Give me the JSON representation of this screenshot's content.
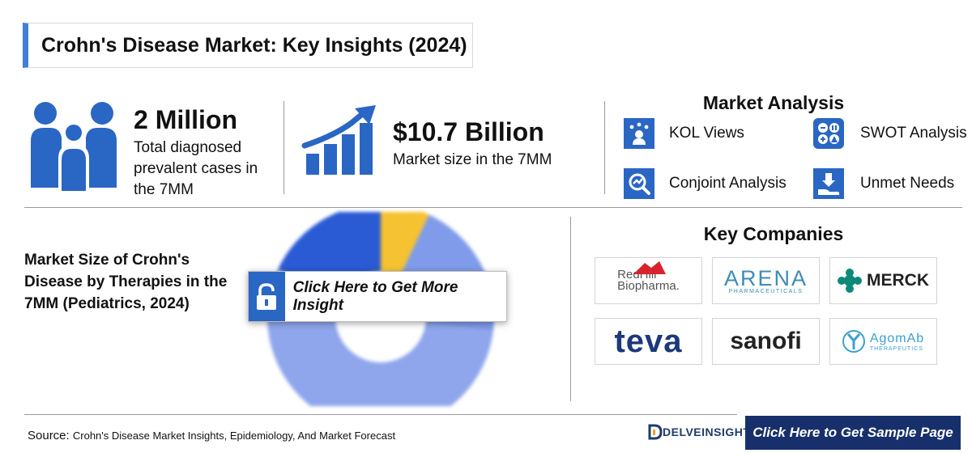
{
  "title": "Crohn's Disease Market: Key Insights (2024)",
  "stats": [
    {
      "value": "2 Million",
      "desc_lines": [
        "Total diagnosed",
        "prevalent cases in",
        "the 7MM"
      ],
      "icon": "family-icon"
    },
    {
      "value": "$10.7 Billion",
      "desc_lines": [
        "Market size in the 7MM"
      ],
      "icon": "growth-chart-icon"
    }
  ],
  "market_analysis": {
    "title": "Market Analysis",
    "items": [
      {
        "label": "KOL Views",
        "icon": "kol-icon"
      },
      {
        "label": "SWOT Analysis",
        "icon": "swot-icon"
      },
      {
        "label": "Conjoint Analysis",
        "icon": "conjoint-icon"
      },
      {
        "label": "Unmet Needs",
        "icon": "unmet-needs-icon"
      }
    ]
  },
  "chart_section": {
    "title_lines": [
      "Market Size of Crohn's",
      "Disease by Therapies in the",
      "7MM (Pediatrics, 2024)"
    ],
    "cta_label": "Click Here to Get More Insight"
  },
  "chart_data": {
    "type": "pie",
    "note_blurred": true,
    "slices": [
      {
        "value": 7,
        "color": "#f5c231"
      },
      {
        "value": 20,
        "color": "#7f9bea"
      },
      {
        "value": 55,
        "color": "#8fa6ec"
      },
      {
        "value": 18,
        "color": "#2a5bd4"
      }
    ]
  },
  "key_companies": {
    "title": "Key Companies",
    "items": [
      {
        "name": "RedHill Biopharma",
        "line1": "RedHill",
        "line2": "Biopharma."
      },
      {
        "name": "ARENA",
        "line1": "ARENA",
        "line2": "PHARMACEUTICALS"
      },
      {
        "name": "MERCK",
        "line1": "MERCK"
      },
      {
        "name": "teva",
        "line1": "teva"
      },
      {
        "name": "sanofi",
        "line1": "sanofi"
      },
      {
        "name": "AgomAb",
        "line1": "AgomAb",
        "line2": "THERAPEUTICS"
      }
    ]
  },
  "footer": {
    "source_label": "Source:",
    "source_text": "Crohn's Disease Market Insights, Epidemiology, And Market Forecast",
    "brand": "DELVEINSIGHT",
    "sample_cta": "Click Here to Get Sample Page"
  },
  "colors": {
    "accent": "#2a66c4",
    "dark_blue": "#17306b",
    "yellow": "#f5c231"
  }
}
